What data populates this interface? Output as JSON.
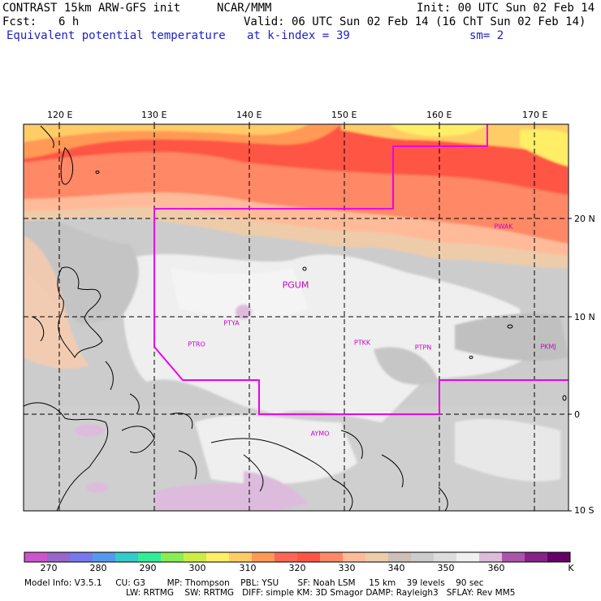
{
  "header": {
    "title_left": "CONTRAST 15km ARW-GFS init",
    "org": "NCAR/MMM",
    "init": "Init: 00 UTC Sun 02 Feb 14",
    "fcst_label": "Fcst:",
    "fcst_value": "6 h",
    "valid": "Valid: 06 UTC Sun 02 Feb 14 (16 ChT Sun 02 Feb 14)",
    "field": "Equivalent potential temperature",
    "level": "at k-index =",
    "level_value": "39",
    "smooth": "sm= 2"
  },
  "map": {
    "lon_labels": [
      "120 E",
      "130 E",
      "140 E",
      "150 E",
      "160 E",
      "170 E"
    ],
    "lat_labels": [
      "20 N",
      "10 N",
      "0",
      "10 S"
    ],
    "stations": [
      {
        "id": "PWAK"
      },
      {
        "id": "PGUM"
      },
      {
        "id": "PTYA"
      },
      {
        "id": "PTRO"
      },
      {
        "id": "PTKK"
      },
      {
        "id": "PTPN"
      },
      {
        "id": "PKMJ"
      },
      {
        "id": "AYMO"
      }
    ]
  },
  "colorbar": {
    "colors": [
      "#cc55cc",
      "#9966cc",
      "#7777ee",
      "#5599ee",
      "#33cccc",
      "#33ee99",
      "#88ee55",
      "#ccee44",
      "#ffee66",
      "#ffcc66",
      "#ff9955",
      "#ff6655",
      "#ff5544",
      "#ff8866",
      "#ffbb99",
      "#eeccaa",
      "#ccc0b8",
      "#cccccc",
      "#dddddd",
      "#f0f0f0",
      "#ddbbdd",
      "#aa55aa",
      "#882288",
      "#660066"
    ],
    "labels": [
      "270",
      "280",
      "290",
      "300",
      "310",
      "320",
      "330",
      "340",
      "350",
      "360"
    ],
    "unit": "K"
  },
  "model_info": {
    "line1": "Model Info: V3.5.1     CU: G3        MP: Thompson    PBL: YSU       SF: Noah LSM     15 km    39 levels    90 sec",
    "line2": "LW: RRTMG    SW: RRTMG   DIFF: simple KM: 3D Smagor DAMP: Rayleigh3   SFLAY: Rev MM5"
  }
}
